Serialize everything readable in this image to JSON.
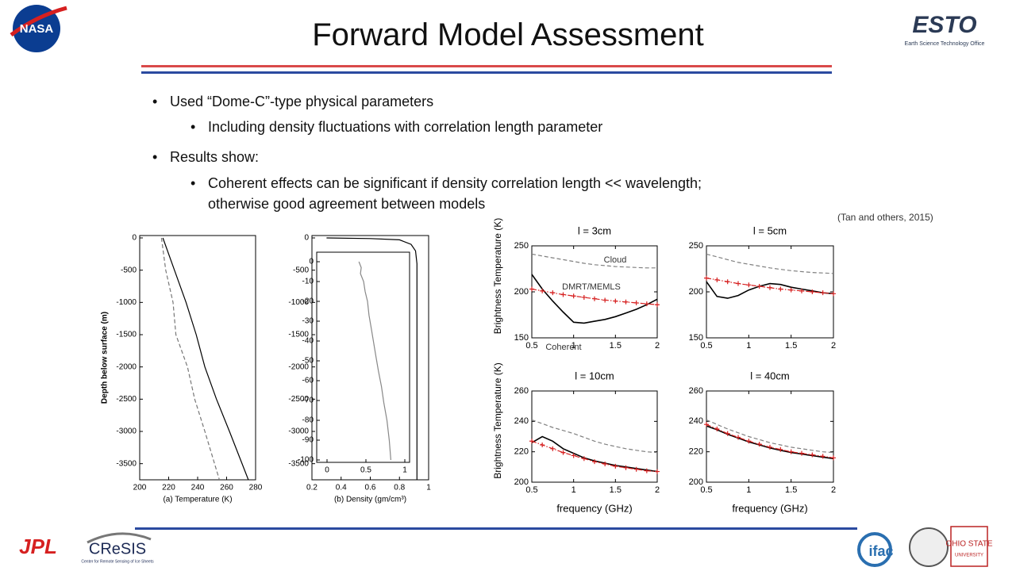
{
  "header": {
    "title": "Forward Model Assessment"
  },
  "bullets": [
    {
      "text": "Used “Dome-C”-type physical parameters",
      "sub": [
        "Including density fluctuations with correlation length parameter"
      ]
    },
    {
      "text": "Results show:",
      "sub": [
        "Coherent effects can be significant if density correlation length << wavelength; otherwise good agreement between models"
      ]
    }
  ],
  "citation": "(Tan and others, 2015)",
  "logos": {
    "nasa": "NASA",
    "esto": "ESTO",
    "esto_sub": "Earth Science Technology Office",
    "jpl": "JPL",
    "cresis": "CReSIS",
    "cresis_sub": "Center for Remote Sensing of Ice Sheets",
    "ifac": "ifac",
    "osu": "OHIO STATE",
    "osu_sub": "UNIVERSITY"
  },
  "charts": [
    {
      "type": "line",
      "xlabel": "(a) Temperature (K)",
      "ylabel": "Depth below surface (m)",
      "xlim": [
        200,
        280
      ],
      "xticks": [
        200,
        220,
        240,
        260,
        280
      ],
      "ylim": [
        -3750,
        0
      ],
      "yticks": [
        0,
        -500,
        -1000,
        -1500,
        -2000,
        -2500,
        -3000,
        -3500
      ],
      "series": [
        {
          "color": "#000000",
          "style": "solid",
          "x": [
            216,
            224,
            232,
            239,
            245,
            253,
            262,
            275
          ],
          "y": [
            0,
            -500,
            -1000,
            -1500,
            -2000,
            -2500,
            -3000,
            -3750
          ]
        },
        {
          "color": "#777777",
          "style": "dashed",
          "x": [
            215,
            218,
            223,
            225,
            233,
            238,
            245,
            255
          ],
          "y": [
            0,
            -500,
            -1000,
            -1500,
            -2000,
            -2500,
            -3000,
            -3750
          ]
        }
      ]
    },
    {
      "type": "line",
      "xlabel": "(b) Density (gm/cm³)",
      "xlim": [
        0.2,
        1
      ],
      "xticks": [
        0.2,
        0.4,
        0.6,
        0.8,
        1
      ],
      "ylim": [
        -3750,
        0
      ],
      "yticks": [
        0,
        -500,
        -1000,
        -1500,
        -2000,
        -2500,
        -3000,
        -3500
      ],
      "series": [
        {
          "color": "#000000",
          "style": "solid",
          "x": [
            0.3,
            0.6,
            0.8,
            0.88,
            0.91,
            0.92,
            0.92
          ],
          "y": [
            0,
            -10,
            -30,
            -100,
            -200,
            -400,
            -3750
          ]
        }
      ],
      "inset": {
        "type": "line",
        "xlim": [
          0,
          1
        ],
        "xticks": [
          0,
          0.5,
          1
        ],
        "ylim": [
          -100,
          0
        ],
        "yticks": [
          0,
          -10,
          -20,
          -30,
          -40,
          -50,
          -60,
          -70,
          -80,
          -90,
          -100
        ],
        "series": [
          {
            "color": "#888888",
            "style": "solid",
            "x": [
              0.41,
              0.44,
              0.43,
              0.47,
              0.49,
              0.52,
              0.54,
              0.57,
              0.6,
              0.63,
              0.66,
              0.7,
              0.73,
              0.77,
              0.8,
              0.82
            ],
            "y": [
              0,
              -3,
              -6,
              -10,
              -15,
              -20,
              -27,
              -34,
              -41,
              -48,
              -55,
              -63,
              -71,
              -80,
              -90,
              -100
            ]
          }
        ]
      }
    },
    {
      "type": "line",
      "title": "l = 3cm",
      "ylabel": "Brightness Temperature (K)",
      "x": [
        0.5,
        0.625,
        0.75,
        0.875,
        1,
        1.125,
        1.25,
        1.375,
        1.5,
        1.625,
        1.75,
        1.875,
        2
      ],
      "xlim": [
        0.5,
        2
      ],
      "xticks": [
        0.5,
        1,
        1.5,
        2
      ],
      "ylim": [
        150,
        250
      ],
      "yticks": [
        150,
        200,
        250
      ],
      "annotations": [
        "Cloud",
        "DMRT/MEMLS",
        "Coherent"
      ],
      "series": [
        {
          "color": "#808080",
          "style": "dashed",
          "values": [
            241,
            239,
            237,
            235,
            233,
            231,
            229.5,
            228.5,
            227.5,
            227,
            226.5,
            226,
            226
          ]
        },
        {
          "color": "#000000",
          "style": "solid",
          "values": [
            219,
            203,
            190,
            178,
            167,
            166,
            168,
            170,
            173,
            177,
            181,
            186,
            192
          ]
        },
        {
          "color": "#d62020",
          "style": "dashdot",
          "marker": "+",
          "values": [
            203,
            201,
            199,
            197,
            195.5,
            194,
            192.5,
            191,
            190,
            189,
            188,
            187,
            186
          ]
        }
      ]
    },
    {
      "type": "line",
      "title": "l = 5cm",
      "x": [
        0.5,
        0.625,
        0.75,
        0.875,
        1,
        1.125,
        1.25,
        1.375,
        1.5,
        1.625,
        1.75,
        1.875,
        2
      ],
      "xlim": [
        0.5,
        2
      ],
      "xticks": [
        0.5,
        1,
        1.5,
        2
      ],
      "ylim": [
        150,
        250
      ],
      "yticks": [
        150,
        200,
        250
      ],
      "series": [
        {
          "color": "#808080",
          "style": "dashed",
          "values": [
            241,
            238,
            235,
            232,
            230,
            228,
            226,
            224.5,
            223,
            222,
            221,
            220.5,
            220
          ]
        },
        {
          "color": "#000000",
          "style": "solid",
          "values": [
            211,
            195,
            193,
            196,
            202,
            206,
            209,
            208,
            205,
            203,
            201,
            199,
            198
          ]
        },
        {
          "color": "#d62020",
          "style": "dashdot",
          "marker": "+",
          "values": [
            215,
            213,
            211,
            209,
            207.5,
            206,
            204.5,
            203,
            202,
            201,
            200,
            199,
            198
          ]
        }
      ]
    },
    {
      "type": "line",
      "title": "l = 10cm",
      "ylabel": "Brightness Temperature (K)",
      "xlabel": "frequency (GHz)",
      "x": [
        0.5,
        0.625,
        0.75,
        0.875,
        1,
        1.125,
        1.25,
        1.375,
        1.5,
        1.625,
        1.75,
        1.875,
        2
      ],
      "xlim": [
        0.5,
        2
      ],
      "xticks": [
        0.5,
        1,
        1.5,
        2
      ],
      "ylim": [
        200,
        260
      ],
      "yticks": [
        200,
        220,
        240,
        260
      ],
      "series": [
        {
          "color": "#808080",
          "style": "dashed",
          "values": [
            241,
            238.5,
            236,
            234,
            232,
            229.5,
            227,
            225,
            223.5,
            222,
            221,
            220,
            219.5
          ]
        },
        {
          "color": "#000000",
          "style": "solid",
          "values": [
            226,
            230,
            227,
            222,
            219,
            216,
            214,
            212.5,
            211,
            210,
            209,
            208,
            207
          ]
        },
        {
          "color": "#d62020",
          "style": "dashdot",
          "marker": "+",
          "values": [
            227,
            224.5,
            222,
            219.5,
            217.5,
            215.5,
            213.5,
            212,
            210.5,
            209.5,
            208.5,
            207.5,
            207
          ]
        }
      ]
    },
    {
      "type": "line",
      "title": "l = 40cm",
      "xlabel": "frequency (GHz)",
      "x": [
        0.5,
        0.625,
        0.75,
        0.875,
        1,
        1.125,
        1.25,
        1.375,
        1.5,
        1.625,
        1.75,
        1.875,
        2
      ],
      "xlim": [
        0.5,
        2
      ],
      "xticks": [
        0.5,
        1,
        1.5,
        2
      ],
      "ylim": [
        200,
        260
      ],
      "yticks": [
        200,
        220,
        240,
        260
      ],
      "series": [
        {
          "color": "#808080",
          "style": "dashed",
          "values": [
            241,
            238,
            235,
            232.5,
            230,
            228,
            226,
            224.5,
            223,
            222,
            221,
            220,
            219.5
          ]
        },
        {
          "color": "#000000",
          "style": "solid",
          "values": [
            237,
            234.5,
            231.5,
            229,
            226.5,
            224.5,
            222.5,
            221,
            219.5,
            218.5,
            217.5,
            216.5,
            215.5
          ]
        },
        {
          "color": "#d62020",
          "style": "dashdot",
          "marker": "+",
          "values": [
            238,
            235,
            232,
            229.5,
            227,
            225,
            223,
            221.5,
            220,
            219,
            218,
            217,
            216
          ]
        }
      ]
    }
  ]
}
